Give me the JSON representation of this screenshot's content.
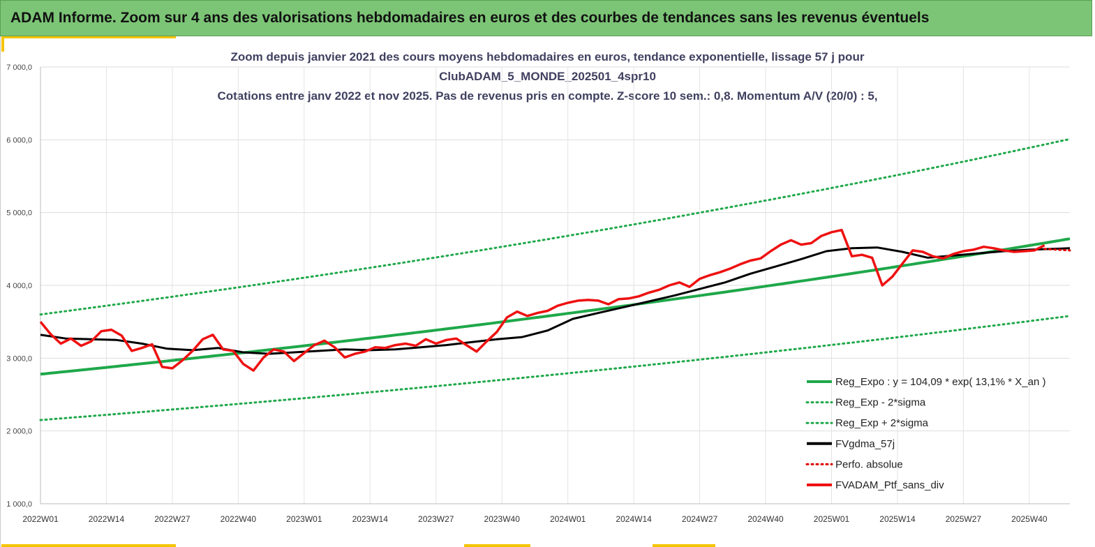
{
  "banner": {
    "title": "ADAM Informe. Zoom sur 4 ans des valorisations hebdomadaires en euros et des courbes de tendances sans les revenus éventuels",
    "color": "#7cc576"
  },
  "chart_data": {
    "type": "line",
    "title_lines": [
      "Zoom depuis janvier 2021 des cours moyens hebdomadaires  en euros, tendance exponentielle, lissage 57 j pour",
      "ClubADAM_5_MONDE_202501_4spr10",
      "Cotations entre janv 2022 et nov 2025. Pas de revenus pris en compte. Z-score 10 sem.: 0,8. Momentum A/V (20/0) : 5,"
    ],
    "x_tick_labels": [
      "2022W01",
      "2022W14",
      "2022W27",
      "2022W40",
      "2023W01",
      "2023W14",
      "2023W27",
      "2023W40",
      "2024W01",
      "2024W14",
      "2024W27",
      "2024W40",
      "2025W01",
      "2025W14",
      "2025W27",
      "2025W40"
    ],
    "y_tick_labels": [
      "1 000,0",
      "2 000,0",
      "3 000,0",
      "4 000,0",
      "5 000,0",
      "6 000,0",
      "7 000,0"
    ],
    "ylim": [
      1000,
      7000
    ],
    "x_range_weeks": [
      0,
      203
    ],
    "grid": true,
    "legend_position": "bottom-right",
    "series": [
      {
        "name": "Reg_Expo : y = 104,09 * exp( 13,1% *  X_an )",
        "color": "#1fa84a",
        "style": "solid",
        "x": [
          0,
          203
        ],
        "y": [
          2780,
          4640
        ],
        "curve": "exponential"
      },
      {
        "name": "Reg_Exp - 2*sigma",
        "color": "#1fa84a",
        "style": "dotted",
        "x": [
          0,
          203
        ],
        "y": [
          2150,
          3580
        ],
        "curve": "exponential"
      },
      {
        "name": "Reg_Exp + 2*sigma",
        "color": "#1fa84a",
        "style": "dotted",
        "x": [
          0,
          203
        ],
        "y": [
          3600,
          6010
        ],
        "curve": "exponential"
      },
      {
        "name": "FVgdma_57j",
        "color": "#000000",
        "style": "solid",
        "x": [
          0,
          5,
          10,
          15,
          20,
          25,
          30,
          35,
          40,
          45,
          50,
          55,
          60,
          65,
          70,
          75,
          80,
          85,
          90,
          95,
          100,
          105,
          110,
          115,
          120,
          125,
          130,
          135,
          140,
          145,
          150,
          155,
          160,
          165,
          170,
          175,
          180,
          185,
          190,
          195,
          203
        ],
        "y": [
          3320,
          3270,
          3260,
          3250,
          3200,
          3130,
          3110,
          3140,
          3080,
          3060,
          3080,
          3100,
          3120,
          3110,
          3120,
          3150,
          3180,
          3220,
          3260,
          3290,
          3380,
          3540,
          3620,
          3700,
          3780,
          3860,
          3950,
          4040,
          4160,
          4260,
          4360,
          4470,
          4510,
          4520,
          4460,
          4380,
          4410,
          4440,
          4470,
          4490,
          4510
        ]
      },
      {
        "name": "Perfo. absolue",
        "color": "#dd0000",
        "style": "dotted",
        "x": [
          198,
          203
        ],
        "y": [
          4500,
          4480
        ]
      },
      {
        "name": "FVADAM_Ptf_sans_div",
        "color": "#ee1111",
        "style": "solid",
        "x": [
          0,
          2,
          4,
          6,
          8,
          10,
          12,
          14,
          16,
          18,
          20,
          22,
          24,
          26,
          28,
          30,
          32,
          34,
          36,
          38,
          40,
          42,
          44,
          46,
          48,
          50,
          52,
          54,
          56,
          58,
          60,
          62,
          64,
          66,
          68,
          70,
          72,
          74,
          76,
          78,
          80,
          82,
          84,
          86,
          88,
          90,
          92,
          94,
          96,
          98,
          100,
          102,
          104,
          106,
          108,
          110,
          112,
          114,
          116,
          118,
          120,
          122,
          124,
          126,
          128,
          130,
          132,
          134,
          136,
          138,
          140,
          142,
          144,
          146,
          148,
          150,
          152,
          154,
          156,
          158,
          160,
          162,
          164,
          166,
          168,
          170,
          172,
          174,
          176,
          178,
          180,
          182,
          184,
          186,
          188,
          190,
          192,
          194,
          196,
          198
        ],
        "y": [
          3500,
          3330,
          3200,
          3270,
          3170,
          3230,
          3370,
          3390,
          3310,
          3100,
          3140,
          3190,
          2880,
          2860,
          2970,
          3100,
          3260,
          3320,
          3120,
          3100,
          2920,
          2830,
          3010,
          3120,
          3090,
          2960,
          3070,
          3180,
          3240,
          3150,
          3010,
          3060,
          3090,
          3150,
          3140,
          3180,
          3200,
          3170,
          3260,
          3200,
          3250,
          3270,
          3180,
          3090,
          3230,
          3360,
          3560,
          3640,
          3580,
          3620,
          3650,
          3720,
          3760,
          3790,
          3800,
          3790,
          3740,
          3810,
          3820,
          3850,
          3900,
          3940,
          4000,
          4040,
          3980,
          4090,
          4140,
          4180,
          4230,
          4290,
          4340,
          4370,
          4470,
          4560,
          4620,
          4560,
          4580,
          4680,
          4730,
          4760,
          4400,
          4420,
          4380,
          4000,
          4120,
          4300,
          4480,
          4460,
          4400,
          4370,
          4430,
          4470,
          4490,
          4530,
          4510,
          4480,
          4460,
          4470,
          4480,
          4550
        ]
      }
    ]
  }
}
